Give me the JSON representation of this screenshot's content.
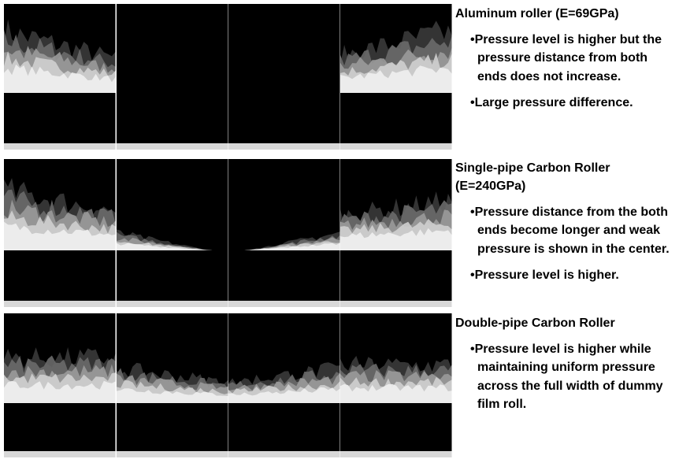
{
  "sections": [
    {
      "title": "Aluminum roller (E=69GPa)",
      "bullets": [
        "•Pressure level is higher but the pressure distance from both ends does not increase.",
        "•Large pressure difference."
      ]
    },
    {
      "title": "Single-pipe Carbon Roller (E=240GPa)",
      "bullets": [
        "•Pressure distance from the both ends become longer and weak pressure is shown in the center.",
        "•Pressure level is higher."
      ]
    },
    {
      "title": "Double-pipe Carbon Roller",
      "bullets": [
        "•Pressure level is higher while maintaining uniform pressure across the full width of dummy film roll."
      ]
    }
  ]
}
